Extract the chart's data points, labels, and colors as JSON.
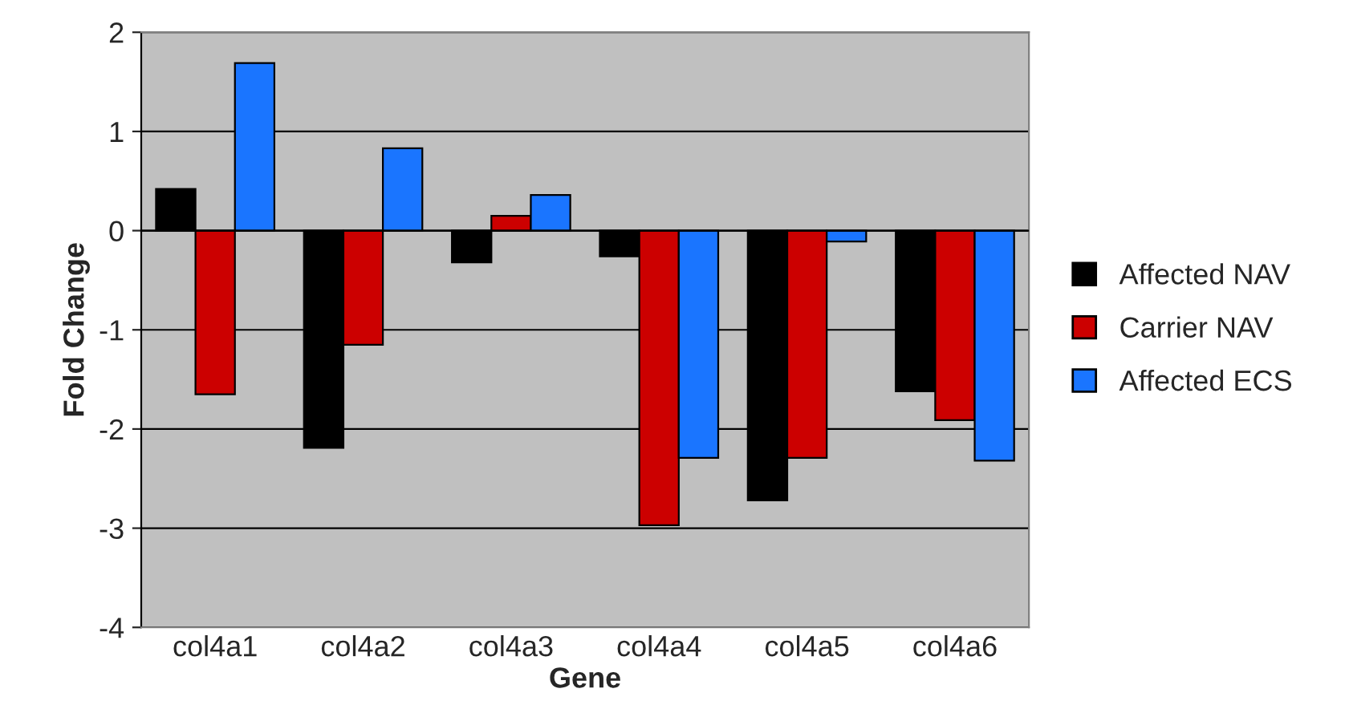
{
  "chart_data": {
    "type": "bar",
    "xlabel": "Gene",
    "ylabel": "Fold Change",
    "categories": [
      "col4a1",
      "col4a2",
      "col4a3",
      "col4a4",
      "col4a5",
      "col4a6"
    ],
    "series": [
      {
        "name": "Affected NAV",
        "color": "#000000",
        "values": [
          0.42,
          -2.19,
          -0.32,
          -0.26,
          -2.72,
          -1.62
        ]
      },
      {
        "name": "Carrier NAV",
        "color": "#cc0000",
        "values": [
          -1.65,
          -1.15,
          0.15,
          -2.97,
          -2.29,
          -1.91
        ]
      },
      {
        "name": "Affected ECS",
        "color": "#1a75ff",
        "values": [
          1.69,
          0.83,
          0.36,
          -2.29,
          -0.11,
          -2.32
        ]
      }
    ],
    "ylim": [
      -4,
      2
    ],
    "yticks": [
      -4,
      -3,
      -2,
      -1,
      0,
      1,
      2
    ],
    "grid": "y",
    "legend": "right"
  }
}
